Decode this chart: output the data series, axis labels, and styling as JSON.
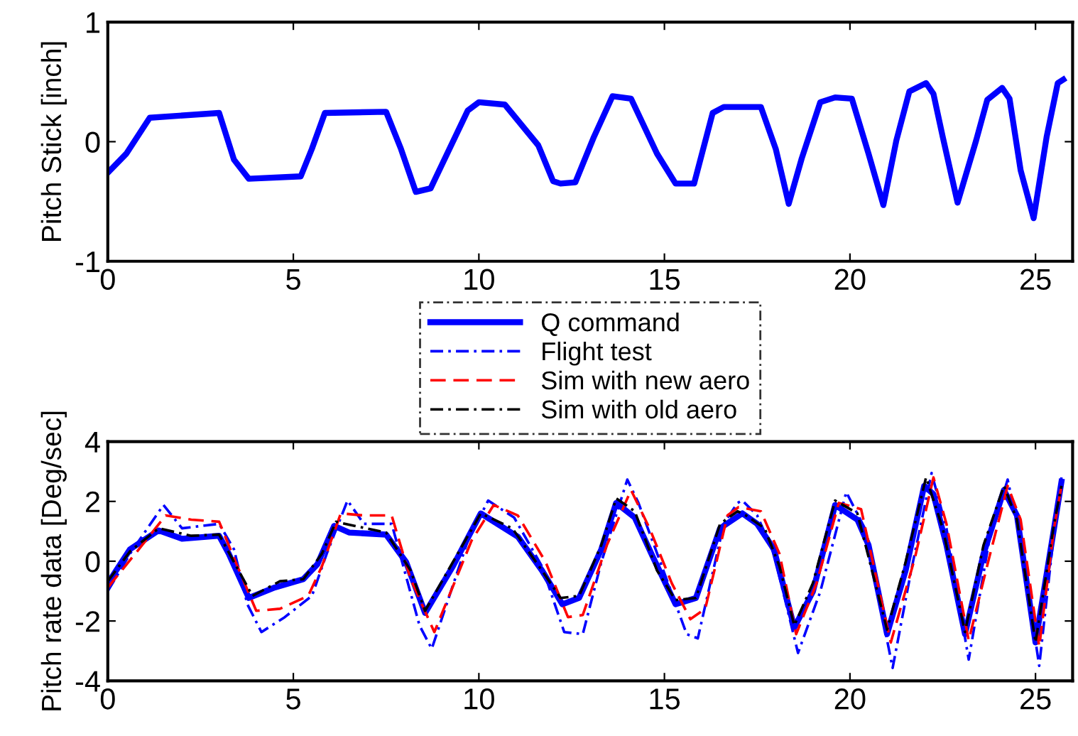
{
  "chart_data": [
    {
      "type": "line",
      "ylabel": "Pitch Stick [inch]",
      "xlim": [
        0,
        26
      ],
      "xticks": [
        0,
        5,
        10,
        15,
        20,
        25
      ],
      "ylim": [
        -1,
        1
      ],
      "yticks": [
        -1,
        0,
        1
      ],
      "grid": false,
      "legend": false,
      "series": [
        {
          "color": "#0000ff",
          "line_style": "solid",
          "x": [
            0,
            0.5,
            1.13,
            3.0,
            3.4,
            3.8,
            5.2,
            5.5,
            5.85,
            7.5,
            7.9,
            8.3,
            8.7,
            9.7,
            10.0,
            10.7,
            11.6,
            12.0,
            12.2,
            12.6,
            13.1,
            13.6,
            14.1,
            14.8,
            15.3,
            15.8,
            16.3,
            16.6,
            17.6,
            18.0,
            18.35,
            18.7,
            19.2,
            19.6,
            20.05,
            20.5,
            20.9,
            21.25,
            21.6,
            22.05,
            22.25,
            22.5,
            22.9,
            23.4,
            23.7,
            24.1,
            24.3,
            24.6,
            24.95,
            25.3,
            25.6,
            25.75
          ],
          "values": [
            -0.26,
            -0.1,
            0.2,
            0.24,
            -0.15,
            -0.31,
            -0.29,
            -0.06,
            0.24,
            0.25,
            -0.06,
            -0.42,
            -0.39,
            0.26,
            0.33,
            0.31,
            -0.03,
            -0.33,
            -0.35,
            -0.34,
            0.04,
            0.38,
            0.36,
            -0.1,
            -0.35,
            -0.35,
            0.24,
            0.29,
            0.29,
            -0.06,
            -0.52,
            -0.14,
            0.33,
            0.37,
            0.36,
            -0.1,
            -0.53,
            0.01,
            0.42,
            0.49,
            0.4,
            0.04,
            -0.51,
            0.01,
            0.35,
            0.45,
            0.36,
            -0.24,
            -0.64,
            0.04,
            0.49,
            0.52
          ]
        }
      ]
    },
    {
      "type": "line",
      "ylabel": "Pitch rate data [Deg/sec]",
      "xlim": [
        0,
        26
      ],
      "xticks": [
        0,
        5,
        10,
        15,
        20,
        25
      ],
      "ylim": [
        -4,
        4
      ],
      "yticks": [
        -4,
        -2,
        0,
        2,
        4
      ],
      "grid": false,
      "legend": "top",
      "series": [
        {
          "name": "Q command",
          "color": "#0000ff",
          "line_style": "solid",
          "x": [
            0,
            0.6,
            1.37,
            2.0,
            3.0,
            3.26,
            3.8,
            4.5,
            5.27,
            5.65,
            6.1,
            6.5,
            7.5,
            8.04,
            8.55,
            9.3,
            10.05,
            11.05,
            11.7,
            12.25,
            12.7,
            13.3,
            13.7,
            14.2,
            14.7,
            15.3,
            15.85,
            16.5,
            17.1,
            17.5,
            17.95,
            18.5,
            19.0,
            19.6,
            20.2,
            20.5,
            21.0,
            21.5,
            22.0,
            22.25,
            22.6,
            23.1,
            23.6,
            24.15,
            24.5,
            25.0,
            25.5,
            25.7
          ],
          "values": [
            -0.74,
            0.4,
            1.03,
            0.75,
            0.85,
            0.25,
            -1.23,
            -0.88,
            -0.6,
            -0.1,
            1.18,
            0.96,
            0.89,
            -0.03,
            -1.73,
            -0.17,
            1.6,
            0.82,
            -0.31,
            -1.44,
            -1.23,
            0.4,
            1.95,
            1.46,
            0.11,
            -1.44,
            -1.23,
            1.1,
            1.6,
            1.25,
            0.4,
            -2.22,
            -1.02,
            1.88,
            1.39,
            0.54,
            -2.44,
            -0.31,
            2.52,
            2.24,
            0.54,
            -2.44,
            0.25,
            2.38,
            1.53,
            -2.72,
            1.1,
            2.66
          ]
        },
        {
          "name": "Flight test",
          "color": "#0000ff",
          "line_style": "dashdot",
          "x": [
            0,
            0.6,
            1.5,
            2.0,
            3.0,
            3.4,
            3.76,
            4.14,
            4.77,
            5.5,
            5.9,
            6.46,
            6.9,
            7.65,
            8.4,
            8.73,
            9.7,
            10.25,
            10.95,
            11.7,
            12.3,
            12.8,
            13.3,
            14.0,
            14.3,
            15.1,
            15.6,
            15.9,
            16.6,
            16.97,
            17.1,
            17.5,
            17.95,
            18.6,
            19.2,
            19.9,
            20.4,
            21.15,
            21.65,
            22.2,
            22.6,
            23.2,
            23.75,
            24.25,
            24.6,
            25.1,
            25.5,
            25.7
          ],
          "values": [
            -1.0,
            0.25,
            1.88,
            1.1,
            1.25,
            0.4,
            -1.44,
            -2.37,
            -1.87,
            -1.16,
            0.25,
            2.03,
            1.25,
            1.25,
            -2.15,
            -2.93,
            0.68,
            2.03,
            1.46,
            -0.17,
            -2.37,
            -2.44,
            -0.03,
            2.73,
            1.95,
            -0.74,
            -2.44,
            -2.58,
            1.25,
            1.95,
            2.03,
            1.53,
            0.25,
            -3.07,
            -1.02,
            2.31,
            1.1,
            -3.57,
            -0.31,
            2.95,
            1.1,
            -3.29,
            0.68,
            2.73,
            0.68,
            -3.5,
            0.96,
            2.8
          ]
        },
        {
          "name": "Sim with new aero",
          "color": "#ff0000",
          "line_style": "dashed",
          "x": [
            0,
            0.74,
            1.56,
            2.25,
            3.0,
            3.4,
            4.0,
            4.64,
            5.4,
            5.77,
            6.28,
            6.9,
            7.65,
            8.16,
            8.8,
            9.8,
            10.4,
            11.05,
            11.8,
            12.4,
            12.8,
            13.45,
            14.1,
            14.6,
            15.2,
            15.7,
            16.1,
            16.7,
            17.0,
            17.6,
            18.1,
            18.55,
            19.1,
            19.7,
            20.3,
            21.1,
            21.75,
            22.25,
            22.6,
            23.2,
            23.75,
            24.25,
            24.6,
            25.1,
            25.5,
            25.7
          ],
          "values": [
            -0.88,
            0.25,
            1.53,
            1.39,
            1.32,
            0.11,
            -1.66,
            -1.59,
            -1.16,
            -0.17,
            1.6,
            1.53,
            1.53,
            -0.6,
            -2.37,
            0.68,
            1.88,
            1.53,
            -0.03,
            -1.87,
            -1.8,
            0.54,
            2.38,
            1.1,
            -0.74,
            -1.94,
            -1.59,
            1.53,
            1.81,
            1.67,
            0.25,
            -2.44,
            -0.74,
            1.95,
            1.74,
            -2.72,
            0.11,
            2.8,
            1.25,
            -2.65,
            0.11,
            2.52,
            1.39,
            -2.86,
            1.1,
            2.52
          ]
        },
        {
          "name": "Sim with old aero",
          "color": "#000000",
          "line_style": "dashdot",
          "x": [
            0,
            0.6,
            1.37,
            2.25,
            3.0,
            3.4,
            3.9,
            4.64,
            5.27,
            5.77,
            6.15,
            6.65,
            7.5,
            8.16,
            8.55,
            9.3,
            10.05,
            10.9,
            11.7,
            12.2,
            12.7,
            13.3,
            13.7,
            14.2,
            14.8,
            15.3,
            15.85,
            16.5,
            16.97,
            17.2,
            17.7,
            18.1,
            18.5,
            19.0,
            19.6,
            20.2,
            21.0,
            21.5,
            22.05,
            22.5,
            23.1,
            23.6,
            24.15,
            24.5,
            25.0,
            25.5,
            25.7
          ],
          "values": [
            -0.67,
            0.33,
            1.1,
            0.85,
            0.89,
            -0.03,
            -1.16,
            -0.67,
            -0.6,
            0.25,
            1.32,
            1.18,
            0.96,
            -0.31,
            -1.66,
            -0.03,
            1.6,
            1.1,
            -0.31,
            -1.23,
            -1.16,
            0.54,
            2.1,
            1.67,
            -0.31,
            -1.3,
            -1.23,
            1.25,
            1.67,
            1.53,
            1.1,
            -0.17,
            -2.15,
            -0.74,
            2.03,
            1.6,
            -2.29,
            -0.03,
            2.8,
            1.1,
            -2.37,
            0.54,
            2.52,
            1.39,
            -2.72,
            1.25,
            2.52
          ]
        }
      ]
    }
  ]
}
